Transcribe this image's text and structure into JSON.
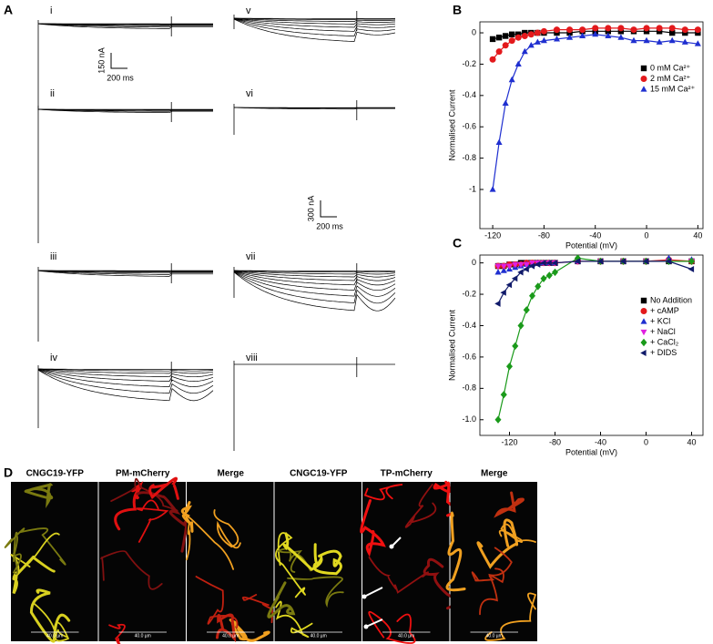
{
  "panel_a": {
    "label": "A",
    "traces": [
      "i",
      "ii",
      "iii",
      "iv",
      "v",
      "vi",
      "vii",
      "viii"
    ],
    "scale_bars": [
      {
        "y": "150 nA",
        "x": "200 ms"
      },
      {
        "y": "300 nA",
        "x": "200 ms"
      }
    ]
  },
  "chart_data": [
    {
      "type": "scatter",
      "label": "B",
      "xlabel": "Potential (mV)",
      "ylabel": "Normalised Current",
      "xlim": [
        -130,
        44
      ],
      "ylim": [
        -1.25,
        0.07
      ],
      "xticks": [
        -120,
        -80,
        -40,
        0,
        40
      ],
      "yticks": [
        0,
        -0.2,
        -0.4,
        -0.6,
        -0.8,
        -1
      ],
      "x": [
        -120,
        -115,
        -110,
        -105,
        -100,
        -95,
        -90,
        -85,
        -80,
        -70,
        -60,
        -50,
        -40,
        -30,
        -20,
        -10,
        0,
        10,
        20,
        30,
        40
      ],
      "legend": "right",
      "series": [
        {
          "name": "0 mM Ca²⁺",
          "color": "#000000",
          "marker": "square",
          "fit": true,
          "values": [
            -0.04,
            -0.03,
            -0.02,
            -0.01,
            -0.01,
            0,
            0,
            0,
            0,
            0,
            0,
            0.01,
            0.01,
            0.01,
            0.01,
            0.01,
            0.01,
            0.01,
            0,
            0,
            0
          ]
        },
        {
          "name": "2 mM Ca²⁺",
          "color": "#e3191c",
          "marker": "circle",
          "fit": true,
          "values": [
            -0.17,
            -0.12,
            -0.08,
            -0.05,
            -0.03,
            -0.02,
            -0.01,
            0,
            0.01,
            0.02,
            0.02,
            0.02,
            0.03,
            0.03,
            0.03,
            0.02,
            0.03,
            0.03,
            0.03,
            0.02,
            0.02
          ]
        },
        {
          "name": "15 mM Ca²⁺",
          "color": "#1f2fd0",
          "marker": "triangle-up",
          "fit": true,
          "values": [
            -1,
            -0.7,
            -0.45,
            -0.3,
            -0.2,
            -0.12,
            -0.08,
            -0.06,
            -0.05,
            -0.04,
            -0.03,
            -0.02,
            -0.01,
            -0.02,
            -0.03,
            -0.05,
            -0.05,
            -0.06,
            -0.05,
            -0.06,
            -0.07
          ]
        }
      ]
    },
    {
      "type": "scatter",
      "label": "C",
      "xlabel": "Potential (mV)",
      "ylabel": "Normalised Current",
      "xlim": [
        -146,
        50
      ],
      "ylim": [
        -1.1,
        0.05
      ],
      "xticks": [
        -120,
        -80,
        -40,
        0,
        40
      ],
      "yticks": [
        0,
        -0.2,
        -0.4,
        -0.6,
        -0.8,
        {
          "value": -1,
          "label": "-1.0"
        }
      ],
      "x": [
        -130,
        -125,
        -120,
        -115,
        -110,
        -105,
        -100,
        -95,
        -90,
        -85,
        -80,
        -60,
        -40,
        -20,
        0,
        20,
        40
      ],
      "legend": "right",
      "series": [
        {
          "name": "No Addition",
          "color": "#000000",
          "marker": "square",
          "fit": false,
          "values": [
            -0.02,
            -0.02,
            -0.01,
            -0.01,
            0,
            0,
            0,
            0,
            0,
            0,
            0,
            0.01,
            0.01,
            0.01,
            0.01,
            0.01,
            0.01
          ]
        },
        {
          "name": "+ cAMP",
          "color": "#e3191c",
          "marker": "circle",
          "fit": true,
          "values": [
            -0.02,
            -0.02,
            -0.01,
            -0.01,
            -0.01,
            0,
            0,
            0,
            0,
            0,
            0,
            0.01,
            0.01,
            0.01,
            0.01,
            0.02,
            0.01
          ]
        },
        {
          "name": "+ KCl",
          "color": "#1f2fd0",
          "marker": "triangle-up",
          "fit": false,
          "values": [
            -0.06,
            -0.05,
            -0.04,
            -0.03,
            -0.02,
            -0.01,
            -0.01,
            0,
            0,
            0,
            0,
            0.01,
            0.01,
            0.01,
            0.01,
            0.03,
            0.02
          ]
        },
        {
          "name": "+ NaCl",
          "color": "#e020e0",
          "marker": "triangle-down",
          "fit": false,
          "values": [
            -0.02,
            -0.02,
            -0.02,
            -0.01,
            -0.01,
            -0.01,
            0,
            0,
            0,
            0,
            0,
            0.01,
            0.01,
            0.01,
            0.01,
            0.01,
            0.01
          ]
        },
        {
          "name": "+ CaCl₂",
          "color": "#1a9a1a",
          "marker": "diamond",
          "fit": true,
          "values": [
            -1,
            -0.84,
            -0.66,
            -0.53,
            -0.4,
            -0.3,
            -0.21,
            -0.15,
            -0.1,
            -0.08,
            -0.06,
            0.03,
            0.01,
            0.01,
            0.01,
            0.01,
            0.01
          ]
        },
        {
          "name": "+ DIDS",
          "color": "#101a6a",
          "marker": "triangle-left",
          "fit": true,
          "values": [
            -0.26,
            -0.19,
            -0.14,
            -0.1,
            -0.06,
            -0.04,
            -0.02,
            -0.01,
            0,
            0,
            0,
            0.01,
            0.01,
            0.01,
            0.01,
            0.01,
            -0.04
          ]
        }
      ]
    }
  ],
  "panel_d": {
    "label": "D",
    "images": [
      {
        "title": "CNGC19-YFP",
        "scale": "40.0 µm"
      },
      {
        "title": "PM-mCherry",
        "scale": "40.0 µm"
      },
      {
        "title": "Merge",
        "scale": "40.0 µm"
      },
      {
        "title": "CNGC19-YFP",
        "scale": "40.0 µm"
      },
      {
        "title": "TP-mCherry",
        "scale": "40.0 µm"
      },
      {
        "title": "Merge",
        "scale": "40.0 µm"
      }
    ]
  }
}
